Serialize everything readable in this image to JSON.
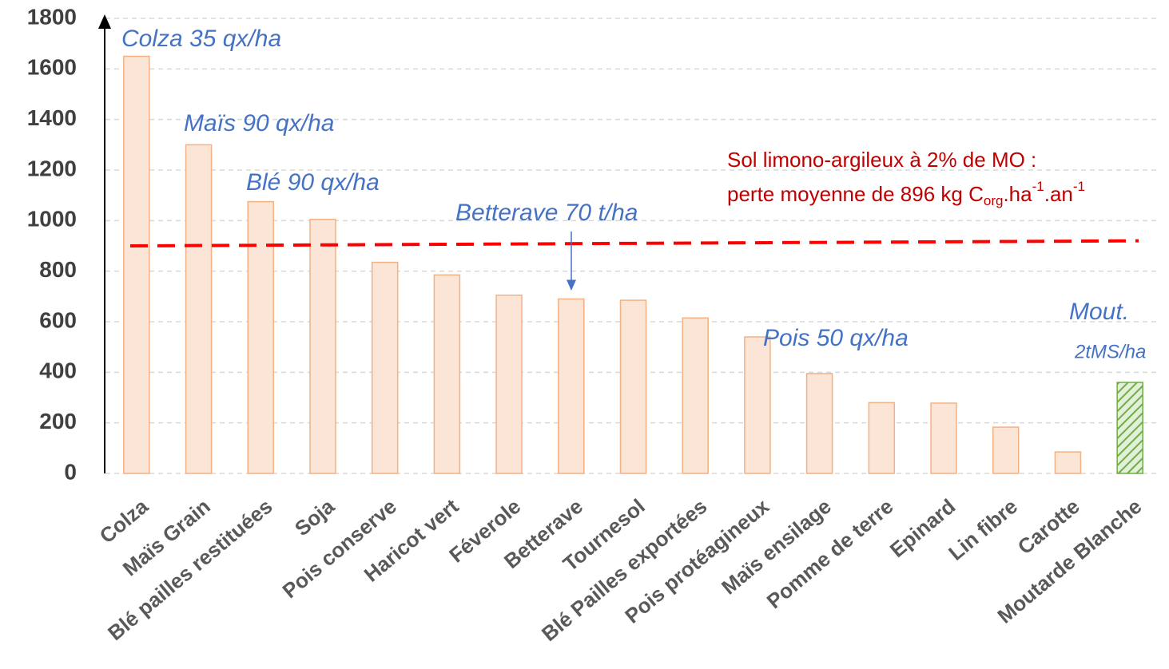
{
  "chart_data": {
    "type": "bar",
    "categories": [
      "Colza",
      "Maïs Grain",
      "Blé pailles restituées",
      "Soja",
      "Pois conserve",
      "Haricot vert",
      "Féverole",
      "Betterave",
      "Tournesol",
      "Blé Pailles exportées",
      "Pois protéagineux",
      "Maïs ensilage",
      "Pomme de terre",
      "Epinard",
      "Lin fibre",
      "Carotte",
      "Moutarde Blanche"
    ],
    "values": [
      1650,
      1300,
      1075,
      1005,
      835,
      785,
      705,
      690,
      685,
      615,
      540,
      395,
      280,
      278,
      183,
      85,
      360
    ],
    "colors": [
      "#fbe5d6",
      "#fbe5d6",
      "#fbe5d6",
      "#fbe5d6",
      "#fbe5d6",
      "#fbe5d6",
      "#fbe5d6",
      "#fbe5d6",
      "#fbe5d6",
      "#fbe5d6",
      "#fbe5d6",
      "#fbe5d6",
      "#fbe5d6",
      "#fbe5d6",
      "#fbe5d6",
      "#fbe5d6",
      "#a9d18e"
    ],
    "ylim": [
      0,
      1800
    ],
    "yticks": [
      0,
      200,
      400,
      600,
      800,
      1000,
      1200,
      1400,
      1600,
      1800
    ],
    "grid": true,
    "reference_line": {
      "values": [
        900,
        920
      ],
      "color": "#ff0000"
    },
    "annotations": [
      "Colza 35 qx/ha",
      "Maïs 90 qx/ha",
      "Blé 90 qx/ha",
      "Betterave 70 t/ha",
      "Pois 50 qx/ha",
      "Mout.",
      "2tMS/ha"
    ],
    "note": {
      "line1": "Sol limono-argileux à 2% de MO :",
      "line2": [
        {
          "text": "perte moyenne de 896 kg C"
        },
        {
          "text": "org",
          "sub": true
        },
        {
          "text": ".ha"
        },
        {
          "text": "-1",
          "sup": true
        },
        {
          "text": ".an"
        },
        {
          "text": "-1",
          "sup": true
        }
      ]
    }
  }
}
